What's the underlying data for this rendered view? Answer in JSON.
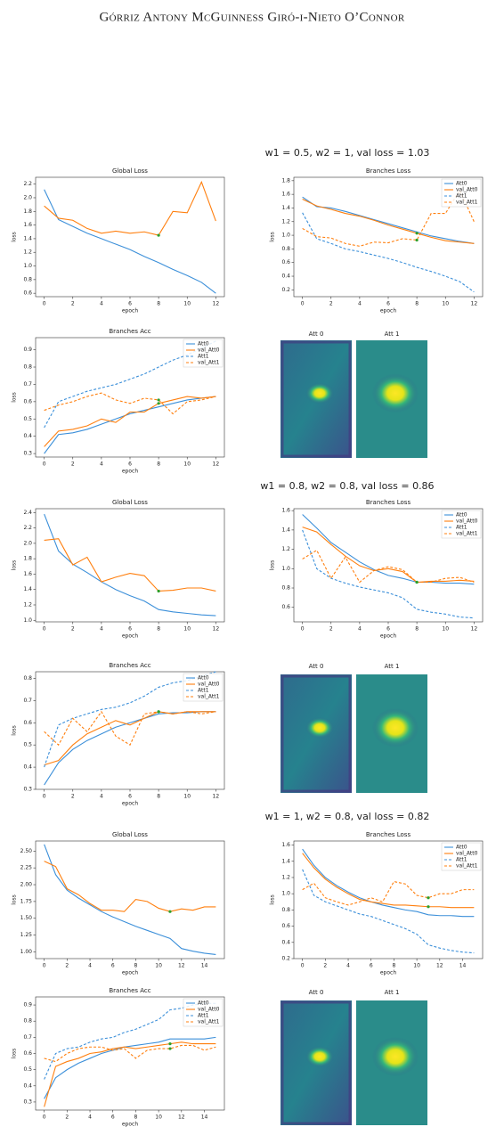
{
  "header": "Górriz Antony McGuinness Giró-i-Nieto O’Connor",
  "figure_captions": [
    "w1 = 0.5, w2 = 1, val loss = 1.03",
    "w1 = 0.8, w2 = 0.8, val loss = 0.86",
    "w1 = 1, w2 = 0.8, val loss = 0.82"
  ],
  "attention_titles": [
    [
      "Att 0",
      "Att 1"
    ],
    [
      "Att 0",
      "Att 1"
    ],
    [
      "Att 0",
      "Att 1"
    ]
  ],
  "chart_data": [
    {
      "type": "line",
      "title": "Global Loss",
      "x_label": "epoch",
      "y_label": "loss",
      "x": [
        0,
        1,
        2,
        3,
        4,
        5,
        6,
        7,
        8,
        9,
        10,
        11,
        12
      ],
      "xlim": [
        -0.6,
        12.6
      ],
      "xticks": [
        0,
        2,
        4,
        6,
        8,
        10,
        12
      ],
      "ylim": [
        0.55,
        2.3
      ],
      "yticks": [
        0.6,
        0.8,
        {
          "value": 1,
          "label": "1.0"
        },
        1.2,
        1.4,
        1.6,
        1.8,
        {
          "value": 2,
          "label": "2.0"
        },
        2.2
      ],
      "best_epoch": 8,
      "best_series": [
        1
      ],
      "best_color": "#2ca02c",
      "series": [
        {
          "color": "#3b8fd9",
          "style": "solid",
          "values": [
            2.12,
            1.68,
            1.58,
            1.48,
            1.4,
            1.32,
            1.24,
            1.14,
            1.05,
            0.95,
            0.86,
            0.76,
            0.6
          ]
        },
        {
          "color": "#ff7f0e",
          "style": "solid",
          "values": [
            1.88,
            1.7,
            1.67,
            1.55,
            1.48,
            1.51,
            1.48,
            1.5,
            1.45,
            1.8,
            1.78,
            2.23,
            1.66
          ]
        }
      ]
    },
    {
      "type": "line",
      "title": "Branches Loss",
      "x_label": "epoch",
      "y_label": "loss",
      "legend": "upper right",
      "x": [
        0,
        1,
        2,
        3,
        4,
        5,
        6,
        7,
        8,
        9,
        10,
        11,
        12
      ],
      "xlim": [
        -0.6,
        12.6
      ],
      "xticks": [
        0,
        2,
        4,
        6,
        8,
        10,
        12
      ],
      "ylim": [
        0.1,
        1.85
      ],
      "yticks": [
        0.2,
        0.4,
        0.6,
        0.8,
        {
          "value": 1,
          "label": "1.0"
        },
        1.2,
        1.4,
        1.6,
        1.8
      ],
      "best_epoch": 8,
      "best_series": [
        1,
        3
      ],
      "best_color": "#2ca02c",
      "series": [
        {
          "name": "Att0",
          "color": "#3b8fd9",
          "style": "solid",
          "values": [
            1.56,
            1.42,
            1.4,
            1.35,
            1.29,
            1.23,
            1.17,
            1.11,
            1.05,
            0.99,
            0.95,
            0.91,
            0.88
          ]
        },
        {
          "name": "val_Att0",
          "color": "#ff7f0e",
          "style": "solid",
          "values": [
            1.53,
            1.43,
            1.38,
            1.32,
            1.28,
            1.22,
            1.15,
            1.09,
            1.03,
            0.97,
            0.92,
            0.9,
            0.88
          ]
        },
        {
          "name": "Att1",
          "color": "#3b8fd9",
          "style": "dashed",
          "values": [
            1.33,
            0.95,
            0.88,
            0.8,
            0.76,
            0.71,
            0.66,
            0.6,
            0.53,
            0.47,
            0.4,
            0.32,
            0.17
          ]
        },
        {
          "name": "val_Att1",
          "color": "#ff7f0e",
          "style": "dashed",
          "values": [
            1.1,
            0.98,
            0.96,
            0.88,
            0.84,
            0.9,
            0.89,
            0.95,
            0.93,
            1.32,
            1.32,
            1.66,
            1.2
          ]
        }
      ]
    },
    {
      "type": "line",
      "title": "Branches Acc",
      "x_label": "epoch",
      "y_label": "loss",
      "legend": "upper right",
      "x": [
        0,
        1,
        2,
        3,
        4,
        5,
        6,
        7,
        8,
        9,
        10,
        11,
        12
      ],
      "xlim": [
        -0.6,
        12.6
      ],
      "xticks": [
        0,
        2,
        4,
        6,
        8,
        10,
        12
      ],
      "ylim": [
        0.28,
        0.97
      ],
      "yticks": [
        0.3,
        0.4,
        0.5,
        0.6,
        0.7,
        0.8,
        0.9
      ],
      "best_epoch": 8,
      "best_series": [
        1,
        3
      ],
      "best_color": "#2ca02c",
      "series": [
        {
          "name": "Att0",
          "color": "#3b8fd9",
          "style": "solid",
          "values": [
            0.3,
            0.41,
            0.42,
            0.44,
            0.47,
            0.5,
            0.53,
            0.55,
            0.57,
            0.59,
            0.61,
            0.62,
            0.63
          ]
        },
        {
          "name": "val_Att0",
          "color": "#ff7f0e",
          "style": "solid",
          "values": [
            0.34,
            0.43,
            0.44,
            0.46,
            0.5,
            0.48,
            0.54,
            0.54,
            0.59,
            0.61,
            0.63,
            0.62,
            0.63
          ]
        },
        {
          "name": "Att1",
          "color": "#3b8fd9",
          "style": "dashed",
          "values": [
            0.45,
            0.6,
            0.63,
            0.66,
            0.68,
            0.7,
            0.73,
            0.76,
            0.8,
            0.84,
            0.87,
            0.91,
            0.95
          ]
        },
        {
          "name": "val_Att1",
          "color": "#ff7f0e",
          "style": "dashed",
          "values": [
            0.55,
            0.58,
            0.6,
            0.63,
            0.65,
            0.61,
            0.59,
            0.62,
            0.61,
            0.53,
            0.6,
            0.61,
            0.63
          ]
        }
      ]
    },
    {
      "type": "line",
      "title": "Global Loss",
      "x_label": "epoch",
      "y_label": "loss",
      "x": [
        0,
        1,
        2,
        3,
        4,
        5,
        6,
        7,
        8,
        9,
        10,
        11,
        12
      ],
      "xlim": [
        -0.6,
        12.6
      ],
      "xticks": [
        0,
        2,
        4,
        6,
        8,
        10,
        12
      ],
      "ylim": [
        0.98,
        2.45
      ],
      "yticks": [
        {
          "value": 1,
          "label": "1.0"
        },
        1.2,
        1.4,
        1.6,
        1.8,
        {
          "value": 2,
          "label": "2.0"
        },
        2.2,
        2.4
      ],
      "best_epoch": 8,
      "best_series": [
        1
      ],
      "best_color": "#2ca02c",
      "series": [
        {
          "color": "#3b8fd9",
          "style": "solid",
          "values": [
            2.38,
            1.9,
            1.73,
            1.62,
            1.5,
            1.4,
            1.32,
            1.25,
            1.14,
            1.11,
            1.09,
            1.07,
            1.06
          ]
        },
        {
          "color": "#ff7f0e",
          "style": "solid",
          "values": [
            2.04,
            2.06,
            1.72,
            1.82,
            1.5,
            1.56,
            1.61,
            1.58,
            1.38,
            1.39,
            1.42,
            1.42,
            1.38
          ]
        }
      ]
    },
    {
      "type": "line",
      "title": "Branches Loss",
      "x_label": "epoch",
      "y_label": "loss",
      "legend": "upper right",
      "x": [
        0,
        1,
        2,
        3,
        4,
        5,
        6,
        7,
        8,
        9,
        10,
        11,
        12
      ],
      "xlim": [
        -0.6,
        12.6
      ],
      "xticks": [
        0,
        2,
        4,
        6,
        8,
        10,
        12
      ],
      "ylim": [
        0.45,
        1.62
      ],
      "yticks": [
        0.6,
        0.8,
        {
          "value": 1,
          "label": "1.0"
        },
        1.2,
        1.4,
        1.6
      ],
      "best_epoch": 8,
      "best_series": [
        1,
        3
      ],
      "best_color": "#2ca02c",
      "series": [
        {
          "name": "Att0",
          "color": "#3b8fd9",
          "style": "solid",
          "values": [
            1.56,
            1.42,
            1.27,
            1.17,
            1.07,
            0.99,
            0.93,
            0.9,
            0.86,
            0.86,
            0.85,
            0.85,
            0.84
          ]
        },
        {
          "name": "val_Att0",
          "color": "#ff7f0e",
          "style": "solid",
          "values": [
            1.43,
            1.38,
            1.25,
            1.13,
            1.03,
            0.98,
            1.0,
            0.97,
            0.86,
            0.87,
            0.87,
            0.88,
            0.87
          ]
        },
        {
          "name": "Att1",
          "color": "#3b8fd9",
          "style": "dashed",
          "values": [
            1.4,
            1.0,
            0.9,
            0.85,
            0.81,
            0.78,
            0.75,
            0.7,
            0.58,
            0.55,
            0.53,
            0.5,
            0.49
          ]
        },
        {
          "name": "val_Att1",
          "color": "#ff7f0e",
          "style": "dashed",
          "values": [
            1.1,
            1.19,
            0.9,
            1.12,
            0.86,
            0.98,
            1.02,
            0.99,
            0.86,
            0.86,
            0.9,
            0.91,
            0.86
          ]
        }
      ]
    },
    {
      "type": "line",
      "title": "Branches Acc",
      "x_label": "epoch",
      "y_label": "loss",
      "legend": "upper right",
      "x": [
        0,
        1,
        2,
        3,
        4,
        5,
        6,
        7,
        8,
        9,
        10,
        11,
        12
      ],
      "xlim": [
        -0.6,
        12.6
      ],
      "xticks": [
        0,
        2,
        4,
        6,
        8,
        10,
        12
      ],
      "ylim": [
        0.3,
        0.83
      ],
      "yticks": [
        0.3,
        0.4,
        0.5,
        0.6,
        0.7,
        0.8
      ],
      "best_epoch": 8,
      "best_series": [
        1,
        3
      ],
      "best_color": "#2ca02c",
      "series": [
        {
          "name": "Att0",
          "color": "#3b8fd9",
          "style": "solid",
          "values": [
            0.32,
            0.42,
            0.48,
            0.52,
            0.55,
            0.58,
            0.6,
            0.62,
            0.64,
            0.645,
            0.645,
            0.65,
            0.65
          ]
        },
        {
          "name": "val_Att0",
          "color": "#ff7f0e",
          "style": "solid",
          "values": [
            0.41,
            0.43,
            0.5,
            0.55,
            0.58,
            0.61,
            0.59,
            0.62,
            0.65,
            0.64,
            0.65,
            0.65,
            0.65
          ]
        },
        {
          "name": "Att1",
          "color": "#3b8fd9",
          "style": "dashed",
          "values": [
            0.4,
            0.59,
            0.62,
            0.64,
            0.66,
            0.67,
            0.69,
            0.72,
            0.76,
            0.78,
            0.79,
            0.81,
            0.83
          ]
        },
        {
          "name": "val_Att1",
          "color": "#ff7f0e",
          "style": "dashed",
          "values": [
            0.56,
            0.5,
            0.62,
            0.56,
            0.65,
            0.54,
            0.5,
            0.64,
            0.65,
            0.64,
            0.65,
            0.64,
            0.65
          ]
        }
      ]
    },
    {
      "type": "line",
      "title": "Global Loss",
      "x_label": "epoch",
      "y_label": "loss",
      "x": [
        0,
        1,
        2,
        3,
        4,
        5,
        6,
        7,
        8,
        9,
        10,
        11,
        12,
        13,
        14,
        15
      ],
      "xlim": [
        -0.75,
        15.75
      ],
      "xticks": [
        0,
        2,
        4,
        6,
        8,
        10,
        12,
        14
      ],
      "ylim": [
        0.9,
        2.65
      ],
      "yticks": [
        {
          "value": 1,
          "label": "1.00"
        },
        1.25,
        {
          "value": 1.5,
          "label": "1.50"
        },
        1.75,
        {
          "value": 2,
          "label": "2.00"
        },
        2.25,
        {
          "value": 2.5,
          "label": "2.50"
        }
      ],
      "best_epoch": 11,
      "best_series": [
        1
      ],
      "best_color": "#2ca02c",
      "series": [
        {
          "color": "#3b8fd9",
          "style": "solid",
          "values": [
            2.6,
            2.15,
            1.92,
            1.8,
            1.7,
            1.6,
            1.52,
            1.45,
            1.38,
            1.32,
            1.26,
            1.2,
            1.05,
            1.01,
            0.98,
            0.96
          ]
        },
        {
          "color": "#ff7f0e",
          "style": "solid",
          "values": [
            2.35,
            2.27,
            1.94,
            1.85,
            1.72,
            1.62,
            1.62,
            1.6,
            1.78,
            1.75,
            1.65,
            1.6,
            1.64,
            1.62,
            1.67,
            1.67
          ]
        }
      ]
    },
    {
      "type": "line",
      "title": "Branches Loss",
      "x_label": "epoch",
      "y_label": "loss",
      "legend": "upper right",
      "x": [
        0,
        1,
        2,
        3,
        4,
        5,
        6,
        7,
        8,
        9,
        10,
        11,
        12,
        13,
        14,
        15
      ],
      "xlim": [
        -0.75,
        15.75
      ],
      "xticks": [
        0,
        2,
        4,
        6,
        8,
        10,
        12,
        14
      ],
      "ylim": [
        0.2,
        1.65
      ],
      "yticks": [
        0.2,
        0.4,
        0.6,
        0.8,
        {
          "value": 1,
          "label": "1.0"
        },
        1.2,
        1.4,
        1.6
      ],
      "best_epoch": 11,
      "best_series": [
        1,
        3
      ],
      "best_color": "#2ca02c",
      "series": [
        {
          "name": "Att0",
          "color": "#3b8fd9",
          "style": "solid",
          "values": [
            1.55,
            1.35,
            1.2,
            1.1,
            1.02,
            0.95,
            0.9,
            0.86,
            0.83,
            0.8,
            0.78,
            0.74,
            0.73,
            0.73,
            0.72,
            0.72
          ]
        },
        {
          "name": "val_Att0",
          "color": "#ff7f0e",
          "style": "solid",
          "values": [
            1.5,
            1.32,
            1.18,
            1.08,
            1.0,
            0.93,
            0.9,
            0.88,
            0.86,
            0.86,
            0.85,
            0.84,
            0.84,
            0.83,
            0.83,
            0.83
          ]
        },
        {
          "name": "Att1",
          "color": "#3b8fd9",
          "style": "dashed",
          "values": [
            1.3,
            0.98,
            0.9,
            0.85,
            0.8,
            0.75,
            0.72,
            0.67,
            0.62,
            0.57,
            0.5,
            0.37,
            0.33,
            0.3,
            0.28,
            0.27
          ]
        },
        {
          "name": "val_Att1",
          "color": "#ff7f0e",
          "style": "dashed",
          "values": [
            1.05,
            1.13,
            0.95,
            0.9,
            0.86,
            0.9,
            0.95,
            0.9,
            1.15,
            1.12,
            0.98,
            0.95,
            1.0,
            1.0,
            1.05,
            1.05
          ]
        }
      ]
    },
    {
      "type": "line",
      "title": "Branches Acc",
      "x_label": "epoch",
      "y_label": "loss",
      "legend": "upper right",
      "x": [
        0,
        1,
        2,
        3,
        4,
        5,
        6,
        7,
        8,
        9,
        10,
        11,
        12,
        13,
        14,
        15
      ],
      "xlim": [
        -0.75,
        15.75
      ],
      "xticks": [
        0,
        2,
        4,
        6,
        8,
        10,
        12,
        14
      ],
      "ylim": [
        0.25,
        0.95
      ],
      "yticks": [
        0.3,
        0.4,
        0.5,
        0.6,
        0.7,
        0.8,
        0.9
      ],
      "best_epoch": 11,
      "best_series": [
        1,
        3
      ],
      "best_color": "#2ca02c",
      "series": [
        {
          "name": "Att0",
          "color": "#3b8fd9",
          "style": "solid",
          "values": [
            0.32,
            0.45,
            0.5,
            0.54,
            0.57,
            0.6,
            0.62,
            0.64,
            0.65,
            0.66,
            0.67,
            0.69,
            0.69,
            0.69,
            0.69,
            0.7
          ]
        },
        {
          "name": "val_Att0",
          "color": "#ff7f0e",
          "style": "solid",
          "values": [
            0.27,
            0.52,
            0.55,
            0.57,
            0.6,
            0.61,
            0.63,
            0.64,
            0.63,
            0.64,
            0.65,
            0.66,
            0.67,
            0.66,
            0.66,
            0.66
          ]
        },
        {
          "name": "Att1",
          "color": "#3b8fd9",
          "style": "dashed",
          "values": [
            0.44,
            0.6,
            0.63,
            0.64,
            0.67,
            0.69,
            0.7,
            0.73,
            0.75,
            0.78,
            0.81,
            0.87,
            0.88,
            0.9,
            0.91,
            0.91
          ]
        },
        {
          "name": "val_Att1",
          "color": "#ff7f0e",
          "style": "dashed",
          "values": [
            0.57,
            0.55,
            0.6,
            0.63,
            0.64,
            0.64,
            0.62,
            0.63,
            0.57,
            0.62,
            0.63,
            0.63,
            0.65,
            0.65,
            0.62,
            0.64
          ]
        }
      ]
    }
  ]
}
